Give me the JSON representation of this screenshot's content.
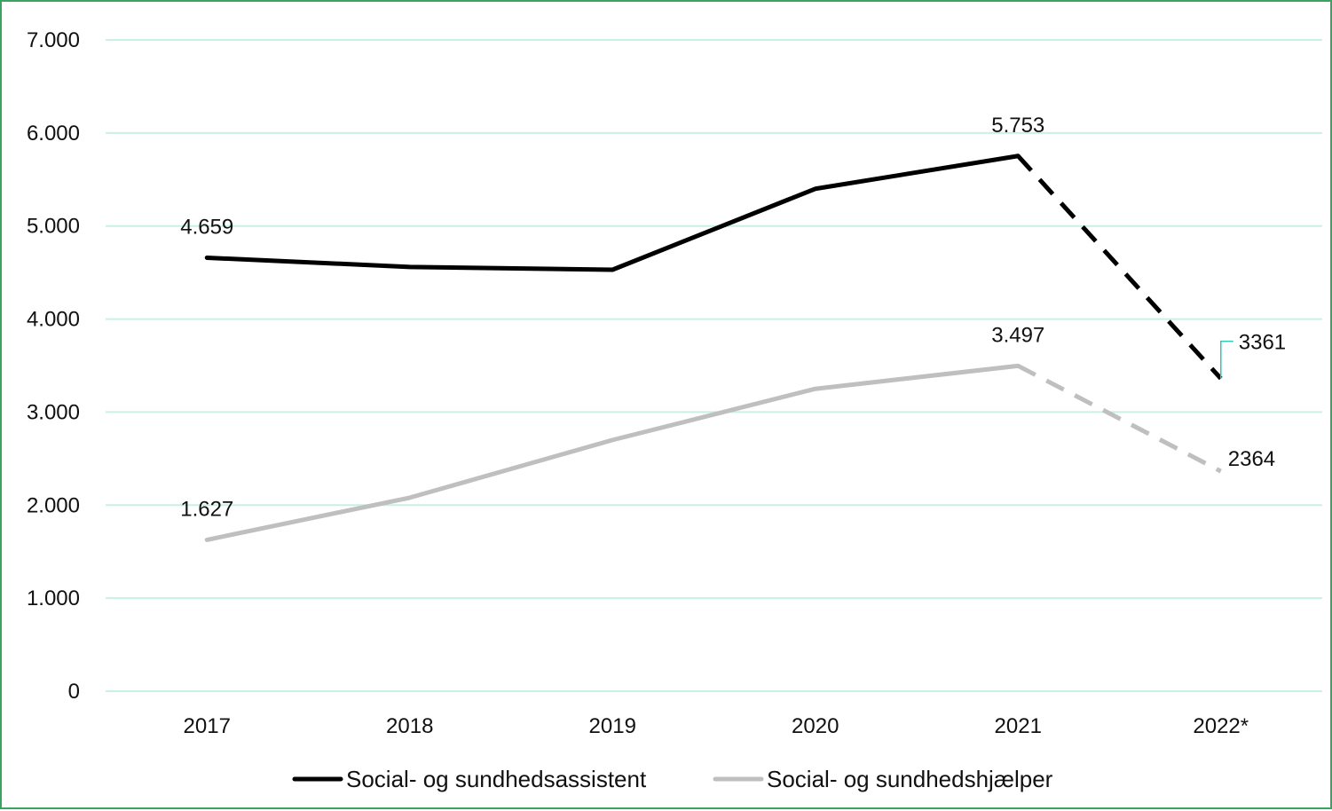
{
  "chart_data": {
    "type": "line",
    "title": "",
    "xlabel": "",
    "ylabel": "",
    "categories": [
      "2017",
      "2018",
      "2019",
      "2020",
      "2021",
      "2022*"
    ],
    "y_ticks": [
      "0",
      "1.000",
      "2.000",
      "3.000",
      "4.000",
      "5.000",
      "6.000",
      "7.000"
    ],
    "ylim": [
      0,
      7000
    ],
    "grid": "horizontal",
    "legend_position": "bottom",
    "series": [
      {
        "name": "Social- og sundhedsassistent",
        "values": [
          4659,
          4560,
          4530,
          5400,
          5753,
          3361
        ],
        "color": "#000000",
        "dashed_from_index": 4,
        "labels": [
          {
            "index": 0,
            "text": "4.659"
          },
          {
            "index": 4,
            "text": "5.753"
          },
          {
            "index": 5,
            "text": "3361"
          }
        ]
      },
      {
        "name": "Social- og sundhedshjælper",
        "values": [
          1627,
          2080,
          2700,
          3250,
          3497,
          2364
        ],
        "color": "#bfbfbf",
        "dashed_from_index": 4,
        "labels": [
          {
            "index": 0,
            "text": "1.627"
          },
          {
            "index": 4,
            "text": "3.497"
          },
          {
            "index": 5,
            "text": "2364"
          }
        ]
      }
    ],
    "colors": {
      "gridline": "#c8f0e6",
      "frame_border": "#3aa35f",
      "leader_line": "#33c6b4"
    }
  }
}
